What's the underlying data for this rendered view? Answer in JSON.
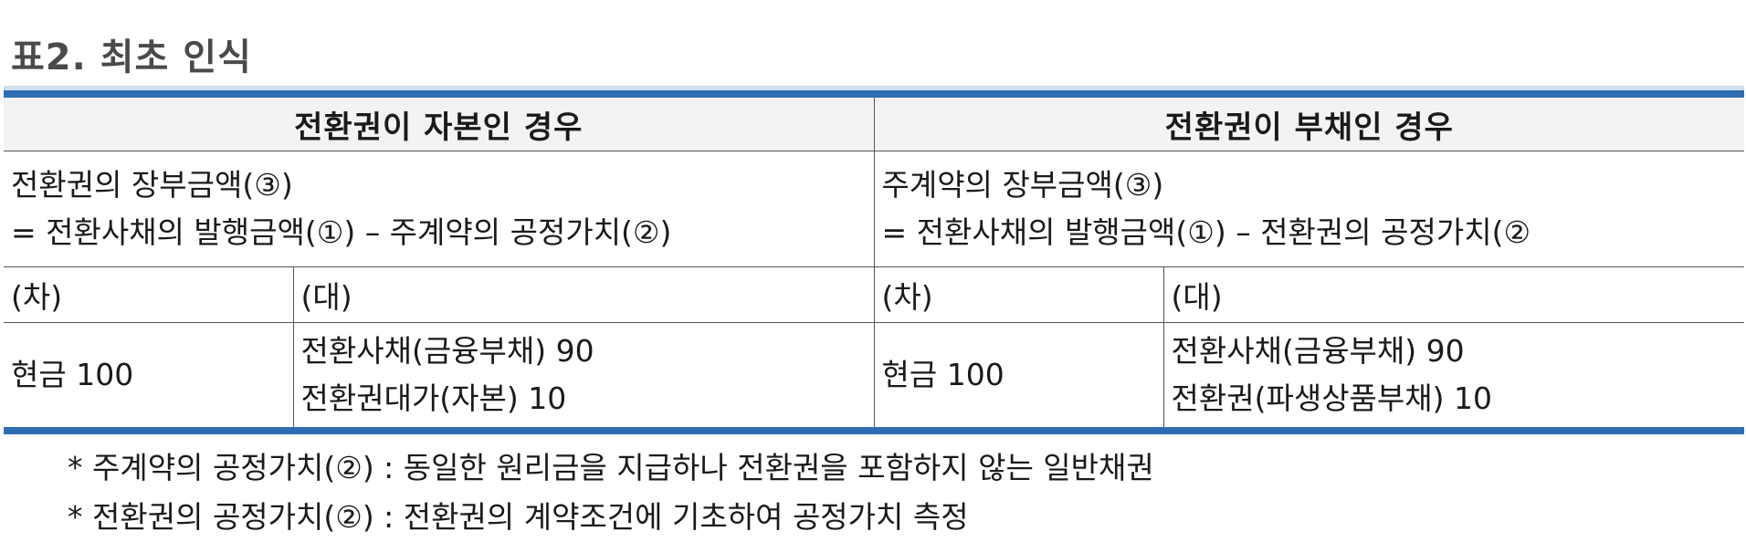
{
  "title": "표2. 최초 인식",
  "table": {
    "headers": [
      "전환권이 자본인 경우",
      "전환권이 부채인 경우"
    ],
    "formula_left": [
      "전환권의 장부금액(③)",
      "= 전환사채의 발행금액(①) – 주계약의 공정가치(②)"
    ],
    "formula_right": [
      "주계약의 장부금액(③)",
      "= 전환사채의 발행금액(①) – 전환권의 공정가치(②"
    ],
    "debit_label": "(차)",
    "credit_label": "(대)",
    "left_entry": {
      "debit": "현금 100",
      "credit": [
        "전환사채(금융부채) 90",
        "전환권대가(자본) 10"
      ]
    },
    "right_entry": {
      "debit": "현금 100",
      "credit": [
        "전환사채(금융부채) 90",
        "전환권(파생상품부채) 10"
      ]
    }
  },
  "notes": [
    "* 주계약의 공정가치(②) : 동일한 원리금을 지급하나 전환권을 포함하지 않는 일반채권",
    "* 전환권의 공정가치(②) : 전환권의 계약조건에 기초하여 공정가치 측정"
  ]
}
